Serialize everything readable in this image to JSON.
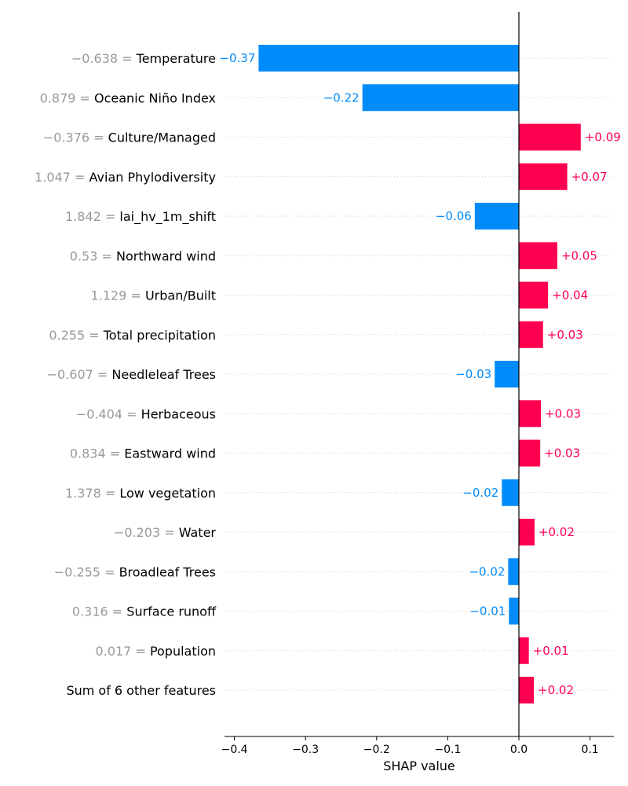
{
  "chart_data": {
    "type": "bar",
    "orientation": "horizontal",
    "xlabel": "SHAP value",
    "xlim": [
      -0.41,
      0.135
    ],
    "xticks": [
      -0.4,
      -0.3,
      -0.2,
      -0.1,
      0.0,
      0.1
    ],
    "xtick_labels": [
      "−0.4",
      "−0.3",
      "−0.2",
      "−0.1",
      "0.0",
      "0.1"
    ],
    "colors": {
      "positive": "#ff0051",
      "negative": "#008bfb",
      "feature_value": "#999999",
      "grid": "#cccccc"
    },
    "grid": "dotted horizontal",
    "rows": [
      {
        "feature_value": "−0.638 = ",
        "feature": "Temperature",
        "value": -0.366,
        "label": "−0.37"
      },
      {
        "feature_value": "0.879 = ",
        "feature": "Oceanic Niño Index",
        "value": -0.22,
        "label": "−0.22"
      },
      {
        "feature_value": "−0.376 = ",
        "feature": "Culture/Managed",
        "value": 0.087,
        "label": "+0.09"
      },
      {
        "feature_value": "1.047 = ",
        "feature": "Avian Phylodiversity",
        "value": 0.068,
        "label": "+0.07"
      },
      {
        "feature_value": "1.842 = ",
        "feature": "lai_hv_1m_shift",
        "value": -0.062,
        "label": "−0.06"
      },
      {
        "feature_value": "0.53 = ",
        "feature": "Northward wind",
        "value": 0.054,
        "label": "+0.05"
      },
      {
        "feature_value": "1.129 = ",
        "feature": "Urban/Built",
        "value": 0.041,
        "label": "+0.04"
      },
      {
        "feature_value": "0.255 = ",
        "feature": "Total precipitation",
        "value": 0.034,
        "label": "+0.03"
      },
      {
        "feature_value": "−0.607 = ",
        "feature": "Needleleaf Trees",
        "value": -0.034,
        "label": "−0.03"
      },
      {
        "feature_value": "−0.404 = ",
        "feature": "Herbaceous",
        "value": 0.031,
        "label": "+0.03"
      },
      {
        "feature_value": "0.834 = ",
        "feature": "Eastward wind",
        "value": 0.03,
        "label": "+0.03"
      },
      {
        "feature_value": "1.378 = ",
        "feature": "Low vegetation",
        "value": -0.024,
        "label": "−0.02"
      },
      {
        "feature_value": "−0.203 = ",
        "feature": "Water",
        "value": 0.022,
        "label": "+0.02"
      },
      {
        "feature_value": "−0.255 = ",
        "feature": "Broadleaf Trees",
        "value": -0.015,
        "label": "−0.02"
      },
      {
        "feature_value": "0.316 = ",
        "feature": "Surface runoff",
        "value": -0.014,
        "label": "−0.01"
      },
      {
        "feature_value": "0.017 = ",
        "feature": "Population",
        "value": 0.014,
        "label": "+0.01"
      },
      {
        "feature_value": "",
        "feature": "Sum of 6 other features",
        "value": 0.021,
        "label": "+0.02"
      }
    ]
  }
}
